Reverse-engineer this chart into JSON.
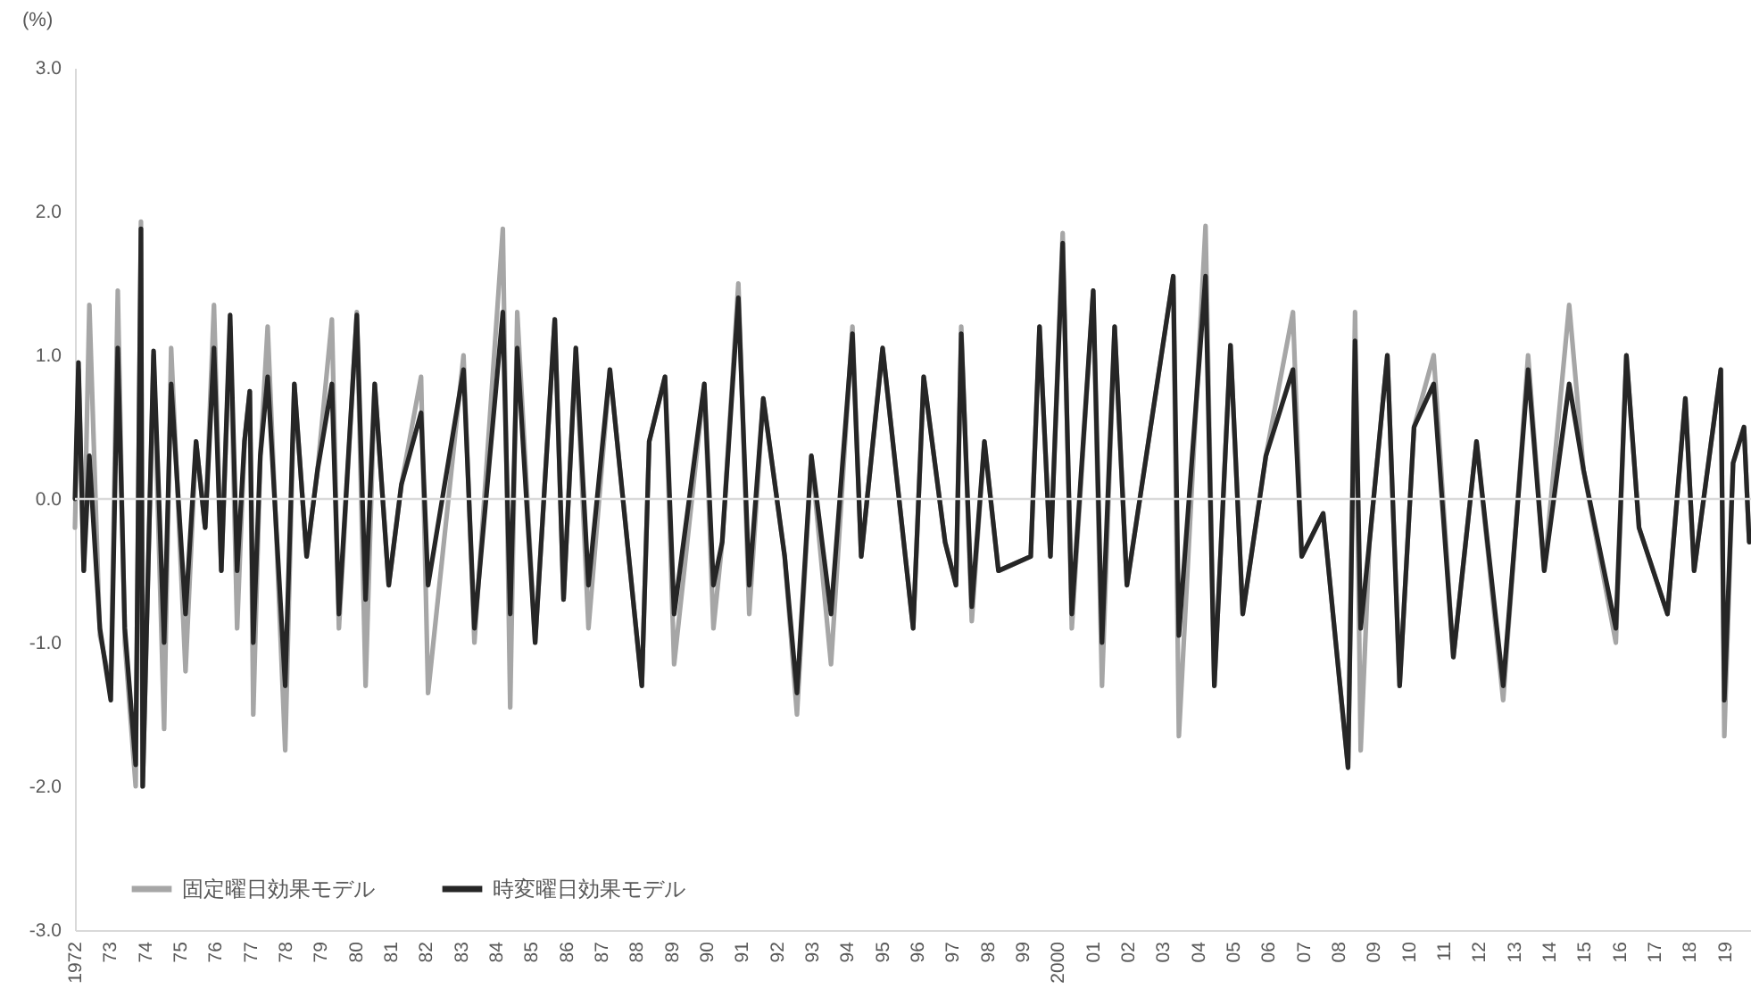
{
  "chart_data": {
    "type": "line",
    "ylabel": "(%)",
    "x": [
      1972.0,
      1972.1,
      1972.25,
      1972.41,
      1972.71,
      1973.02,
      1973.22,
      1973.42,
      1973.73,
      1973.88,
      1973.93,
      1974.24,
      1974.54,
      1974.74,
      1975.15,
      1975.45,
      1975.71,
      1975.96,
      1976.17,
      1976.42,
      1976.62,
      1976.83,
      1976.98,
      1977.08,
      1977.28,
      1977.49,
      1977.99,
      1978.25,
      1978.6,
      1978.91,
      1979.32,
      1979.52,
      1980.03,
      1980.28,
      1980.54,
      1980.94,
      1981.3,
      1981.86,
      1982.06,
      1983.07,
      1983.38,
      1984.19,
      1984.4,
      1984.6,
      1985.11,
      1985.67,
      1985.92,
      1986.27,
      1986.63,
      1987.24,
      1988.15,
      1988.36,
      1988.81,
      1989.07,
      1989.93,
      1990.19,
      1990.44,
      1990.9,
      1991.21,
      1991.61,
      1992.22,
      1992.57,
      1992.98,
      1993.54,
      1994.15,
      1994.4,
      1995.01,
      1995.88,
      1996.18,
      1996.79,
      1997.1,
      1997.25,
      1997.55,
      1997.91,
      1998.31,
      1999.23,
      1999.48,
      1999.79,
      2000.14,
      2000.4,
      2001.01,
      2001.26,
      2001.62,
      2001.97,
      2003.29,
      2003.45,
      2004.21,
      2004.46,
      2004.92,
      2005.27,
      2005.93,
      2006.7,
      2006.95,
      2007.56,
      2008.27,
      2008.47,
      2008.63,
      2008.88,
      2009.39,
      2009.74,
      2010.15,
      2010.71,
      2011.27,
      2011.93,
      2012.69,
      2013.05,
      2013.4,
      2013.86,
      2014.57,
      2014.98,
      2015.9,
      2016.2,
      2016.56,
      2017.37,
      2017.88,
      2018.13,
      2018.89,
      2018.99,
      2019.24,
      2019.55,
      2019.7
    ],
    "series": [
      {
        "name": "固定曜日効果モデル",
        "color": "#a6a6a6",
        "values": [
          -0.2,
          0.9,
          -0.5,
          1.35,
          -0.95,
          -1.3,
          1.45,
          -1.0,
          -2.0,
          1.93,
          -2.0,
          1.0,
          -1.6,
          1.05,
          -1.2,
          0.4,
          -0.2,
          1.35,
          -0.5,
          1.2,
          -0.9,
          0.4,
          0.75,
          -1.5,
          0.3,
          1.2,
          -1.75,
          0.8,
          -0.4,
          0.2,
          1.25,
          -0.9,
          1.3,
          -1.3,
          0.8,
          -0.6,
          0.1,
          0.85,
          -1.35,
          1.0,
          -1.0,
          1.88,
          -1.45,
          1.3,
          -1.0,
          1.25,
          -0.7,
          1.05,
          -0.9,
          0.9,
          -1.3,
          0.4,
          0.85,
          -1.15,
          0.8,
          -0.9,
          -0.3,
          1.5,
          -0.8,
          0.7,
          -0.4,
          -1.5,
          0.3,
          -1.15,
          1.2,
          -0.4,
          1.05,
          -0.9,
          0.85,
          -0.3,
          -0.6,
          1.2,
          -0.85,
          0.4,
          -0.5,
          -0.4,
          1.2,
          -0.4,
          1.85,
          -0.9,
          1.45,
          -1.3,
          1.2,
          -0.6,
          1.55,
          -1.65,
          1.9,
          -1.3,
          1.07,
          -0.8,
          0.3,
          1.3,
          -0.4,
          -0.1,
          -1.87,
          1.3,
          -1.75,
          -0.3,
          1.0,
          -1.3,
          0.5,
          1.0,
          -1.1,
          0.4,
          -1.4,
          -0.2,
          1.0,
          -0.5,
          1.35,
          0.2,
          -1.0,
          1.0,
          -0.2,
          -0.8,
          0.7,
          -0.5,
          0.9,
          -1.65,
          0.25,
          0.5,
          -0.3
        ]
      },
      {
        "name": "時変曜日効果モデル",
        "color": "#262626",
        "values": [
          0,
          0.95,
          -0.5,
          0.3,
          -0.9,
          -1.4,
          1.05,
          -0.9,
          -1.85,
          1.88,
          -2.0,
          1.03,
          -1.0,
          0.8,
          -0.8,
          0.4,
          -0.2,
          1.05,
          -0.5,
          1.28,
          -0.5,
          0.4,
          0.75,
          -1.0,
          0.3,
          0.85,
          -1.3,
          0.8,
          -0.4,
          0.2,
          0.8,
          -0.8,
          1.28,
          -0.7,
          0.8,
          -0.6,
          0.1,
          0.6,
          -0.6,
          0.9,
          -0.9,
          1.3,
          -0.8,
          1.05,
          -1.0,
          1.25,
          -0.7,
          1.05,
          -0.6,
          0.9,
          -1.3,
          0.4,
          0.85,
          -0.8,
          0.8,
          -0.6,
          -0.3,
          1.4,
          -0.6,
          0.7,
          -0.4,
          -1.35,
          0.3,
          -0.8,
          1.15,
          -0.4,
          1.05,
          -0.9,
          0.85,
          -0.3,
          -0.6,
          1.15,
          -0.75,
          0.4,
          -0.5,
          -0.4,
          1.2,
          -0.4,
          1.78,
          -0.8,
          1.45,
          -1.0,
          1.2,
          -0.6,
          1.55,
          -0.95,
          1.55,
          -1.3,
          1.07,
          -0.8,
          0.3,
          0.9,
          -0.4,
          -0.1,
          -1.87,
          1.1,
          -0.9,
          -0.3,
          1.0,
          -1.3,
          0.5,
          0.8,
          -1.1,
          0.4,
          -1.3,
          -0.2,
          0.9,
          -0.5,
          0.8,
          0.2,
          -0.9,
          1.0,
          -0.2,
          -0.8,
          0.7,
          -0.5,
          0.9,
          -1.4,
          0.25,
          0.5,
          -0.3
        ]
      }
    ],
    "xlim": [
      1972,
      2019.75
    ],
    "xticks": [
      {
        "value": 1972,
        "label": "1972"
      },
      {
        "value": 1973,
        "label": "73"
      },
      {
        "value": 1974,
        "label": "74"
      },
      {
        "value": 1975,
        "label": "75"
      },
      {
        "value": 1976,
        "label": "76"
      },
      {
        "value": 1977,
        "label": "77"
      },
      {
        "value": 1978,
        "label": "78"
      },
      {
        "value": 1979,
        "label": "79"
      },
      {
        "value": 1980,
        "label": "80"
      },
      {
        "value": 1981,
        "label": "81"
      },
      {
        "value": 1982,
        "label": "82"
      },
      {
        "value": 1983,
        "label": "83"
      },
      {
        "value": 1984,
        "label": "84"
      },
      {
        "value": 1985,
        "label": "85"
      },
      {
        "value": 1986,
        "label": "86"
      },
      {
        "value": 1987,
        "label": "87"
      },
      {
        "value": 1988,
        "label": "88"
      },
      {
        "value": 1989,
        "label": "89"
      },
      {
        "value": 1990,
        "label": "90"
      },
      {
        "value": 1991,
        "label": "91"
      },
      {
        "value": 1992,
        "label": "92"
      },
      {
        "value": 1993,
        "label": "93"
      },
      {
        "value": 1994,
        "label": "94"
      },
      {
        "value": 1995,
        "label": "95"
      },
      {
        "value": 1996,
        "label": "96"
      },
      {
        "value": 1997,
        "label": "97"
      },
      {
        "value": 1998,
        "label": "98"
      },
      {
        "value": 1999,
        "label": "99"
      },
      {
        "value": 2000,
        "label": "2000"
      },
      {
        "value": 2001,
        "label": "01"
      },
      {
        "value": 2002,
        "label": "02"
      },
      {
        "value": 2003,
        "label": "03"
      },
      {
        "value": 2004,
        "label": "04"
      },
      {
        "value": 2005,
        "label": "05"
      },
      {
        "value": 2006,
        "label": "06"
      },
      {
        "value": 2007,
        "label": "07"
      },
      {
        "value": 2008,
        "label": "08"
      },
      {
        "value": 2009,
        "label": "09"
      },
      {
        "value": 2010,
        "label": "10"
      },
      {
        "value": 2011,
        "label": "11"
      },
      {
        "value": 2012,
        "label": "12"
      },
      {
        "value": 2013,
        "label": "13"
      },
      {
        "value": 2014,
        "label": "14"
      },
      {
        "value": 2015,
        "label": "15"
      },
      {
        "value": 2016,
        "label": "16"
      },
      {
        "value": 2017,
        "label": "17"
      },
      {
        "value": 2018,
        "label": "18"
      },
      {
        "value": 2019,
        "label": "19"
      }
    ],
    "ylim": [
      -3,
      3
    ],
    "yticks": [
      {
        "value": -3,
        "label": "-3.0"
      },
      {
        "value": -2,
        "label": "-2.0"
      },
      {
        "value": -1,
        "label": "-1.0"
      },
      {
        "value": 0,
        "label": "0.0"
      },
      {
        "value": 1,
        "label": "1.0"
      },
      {
        "value": 2,
        "label": "2.0"
      },
      {
        "value": 3,
        "label": "3.0"
      }
    ],
    "ref_lines": [
      {
        "axis": "y",
        "value": 0,
        "color": "#d9d9d9"
      }
    ],
    "legend": "bottom left",
    "line_style": "solid"
  }
}
